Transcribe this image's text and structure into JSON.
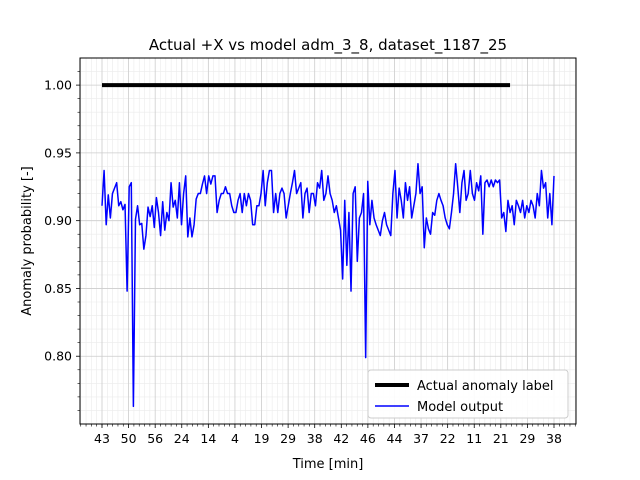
{
  "chart_data": {
    "type": "line",
    "title": "Actual +X vs model adm_3_8, dataset_1187_25",
    "xlabel": "Time [min]",
    "ylabel": "Anomaly probability [-]",
    "ylim": [
      0.75,
      1.02
    ],
    "y_ticks": [
      0.8,
      0.85,
      0.9,
      0.95,
      1.0
    ],
    "y_tick_labels": [
      "0.80",
      "0.85",
      "0.90",
      "0.95",
      "1.00"
    ],
    "x_tick_labels": [
      "43",
      "50",
      "56",
      "24",
      "14",
      "4",
      "19",
      "29",
      "38",
      "42",
      "46",
      "44",
      "37",
      "22",
      "11",
      "21",
      "29",
      "38"
    ],
    "grid": true,
    "minor_grid": true,
    "legend_position": "lower right",
    "series": [
      {
        "name": "Actual anomaly label",
        "color": "#000000",
        "values": [
          1.0,
          1.0,
          1.0,
          1.0,
          1.0,
          1.0,
          1.0,
          1.0,
          1.0,
          1.0,
          1.0,
          1.0,
          1.0,
          1.0,
          1.0,
          1.0,
          1.0,
          1.0,
          1.0,
          1.0,
          1.0,
          1.0,
          1.0,
          1.0,
          1.0,
          1.0,
          1.0,
          1.0,
          1.0,
          1.0,
          1.0,
          1.0,
          1.0,
          1.0,
          1.0,
          1.0,
          1.0,
          1.0,
          1.0,
          1.0,
          1.0,
          1.0,
          1.0,
          1.0,
          1.0,
          1.0,
          1.0,
          1.0,
          1.0,
          1.0,
          1.0,
          1.0,
          1.0,
          1.0,
          1.0,
          1.0,
          1.0,
          1.0,
          1.0,
          1.0,
          1.0,
          1.0,
          1.0,
          1.0,
          1.0,
          1.0,
          1.0,
          1.0,
          1.0,
          1.0,
          1.0,
          1.0,
          1.0,
          1.0,
          1.0,
          1.0,
          1.0,
          1.0,
          1.0,
          1.0,
          1.0,
          1.0,
          1.0,
          1.0,
          1.0,
          1.0,
          1.0,
          1.0,
          1.0,
          1.0,
          1.0,
          1.0,
          1.0,
          1.0,
          1.0,
          1.0,
          1.0,
          1.0,
          1.0,
          1.0,
          1.0,
          1.0,
          1.0,
          1.0,
          1.0,
          1.0,
          1.0,
          1.0,
          1.0,
          1.0,
          1.0,
          1.0,
          1.0,
          1.0,
          1.0,
          1.0,
          1.0,
          1.0,
          1.0,
          1.0,
          1.0,
          1.0,
          1.0,
          1.0,
          1.0,
          1.0,
          1.0,
          1.0,
          1.0,
          1.0,
          1.0,
          1.0,
          1.0,
          1.0,
          1.0,
          1.0,
          1.0,
          1.0,
          1.0,
          1.0,
          1.0,
          1.0,
          1.0,
          1.0,
          1.0,
          1.0,
          1.0,
          1.0,
          1.0,
          1.0,
          1.0,
          1.0,
          1.0,
          1.0,
          1.0,
          1.0,
          1.0,
          1.0,
          1.0,
          1.0,
          1.0,
          1.0,
          1.0,
          1.0,
          1.0,
          1.0,
          1.0,
          1.0,
          1.0,
          1.0,
          1.0,
          1.0,
          1.0,
          1.0,
          1.0,
          1.0,
          1.0,
          1.0,
          1.0,
          1.0,
          1.0,
          1.0,
          1.0,
          1.0,
          1.0,
          1.0,
          1.0,
          1.0,
          1.0,
          1.0,
          1.0,
          1.0,
          1.0,
          1.0,
          1.0,
          1.0
        ]
      },
      {
        "name": "Model output",
        "color": "#0000ff",
        "values": [
          0.911,
          0.937,
          0.897,
          0.919,
          0.902,
          0.92,
          0.924,
          0.928,
          0.911,
          0.914,
          0.908,
          0.912,
          0.848,
          0.925,
          0.928,
          0.763,
          0.901,
          0.911,
          0.897,
          0.898,
          0.879,
          0.889,
          0.91,
          0.903,
          0.911,
          0.895,
          0.917,
          0.906,
          0.889,
          0.914,
          0.893,
          0.906,
          0.9,
          0.928,
          0.91,
          0.915,
          0.902,
          0.928,
          0.897,
          0.92,
          0.933,
          0.888,
          0.902,
          0.888,
          0.897,
          0.916,
          0.92,
          0.92,
          0.927,
          0.933,
          0.92,
          0.933,
          0.927,
          0.933,
          0.933,
          0.906,
          0.915,
          0.92,
          0.92,
          0.925,
          0.92,
          0.92,
          0.911,
          0.906,
          0.906,
          0.915,
          0.92,
          0.906,
          0.92,
          0.911,
          0.92,
          0.915,
          0.897,
          0.897,
          0.911,
          0.911,
          0.92,
          0.937,
          0.911,
          0.928,
          0.937,
          0.937,
          0.906,
          0.92,
          0.906,
          0.92,
          0.924,
          0.92,
          0.902,
          0.911,
          0.92,
          0.928,
          0.937,
          0.92,
          0.924,
          0.928,
          0.902,
          0.92,
          0.924,
          0.906,
          0.92,
          0.92,
          0.911,
          0.928,
          0.924,
          0.937,
          0.915,
          0.92,
          0.933,
          0.92,
          0.915,
          0.906,
          0.911,
          0.902,
          0.893,
          0.857,
          0.915,
          0.867,
          0.906,
          0.848,
          0.92,
          0.925,
          0.87,
          0.902,
          0.906,
          0.92,
          0.799,
          0.929,
          0.897,
          0.915,
          0.902,
          0.897,
          0.893,
          0.889,
          0.9,
          0.906,
          0.897,
          0.893,
          0.889,
          0.92,
          0.937,
          0.902,
          0.924,
          0.915,
          0.902,
          0.928,
          0.915,
          0.925,
          0.902,
          0.911,
          0.92,
          0.942,
          0.92,
          0.925,
          0.88,
          0.902,
          0.894,
          0.89,
          0.906,
          0.904,
          0.915,
          0.92,
          0.915,
          0.911,
          0.902,
          0.897,
          0.894,
          0.906,
          0.92,
          0.942,
          0.925,
          0.906,
          0.928,
          0.937,
          0.915,
          0.92,
          0.937,
          0.92,
          0.915,
          0.928,
          0.922,
          0.933,
          0.89,
          0.928,
          0.93,
          0.925,
          0.93,
          0.925,
          0.93,
          0.928,
          0.93,
          0.902,
          0.906,
          0.892,
          0.915,
          0.906,
          0.911,
          0.897,
          0.915,
          0.911,
          0.906,
          0.915,
          0.902,
          0.911,
          0.906,
          0.915,
          0.911,
          0.902,
          0.92,
          0.911,
          0.937,
          0.924,
          0.928,
          0.902,
          0.92,
          0.897,
          0.933
        ]
      }
    ]
  }
}
